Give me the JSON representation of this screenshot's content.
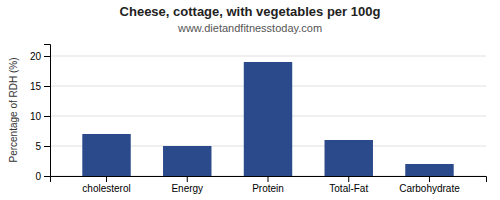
{
  "chart_data": {
    "type": "bar",
    "title": "Cheese, cottage, with vegetables per 100g",
    "subtitle": "www.dietandfitnesstoday.com",
    "categories": [
      "cholesterol",
      "Energy",
      "Protein",
      "Total-Fat",
      "Carbohydrate"
    ],
    "values": [
      7.0,
      5.0,
      19.0,
      6.0,
      2.0
    ],
    "color": "#2b4a8b",
    "ylabel": "Percentage of RDH (%)",
    "ylim": [
      0,
      22
    ],
    "yticks": [
      0,
      5,
      10,
      15,
      20
    ],
    "grid": true
  }
}
